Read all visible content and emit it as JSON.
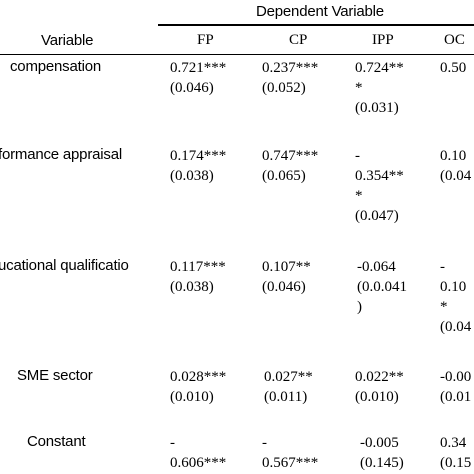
{
  "header": {
    "dependent_variable": "Dependent Variable",
    "variable": "Variable",
    "columns": [
      "FP",
      "CP",
      "IPP",
      "OC"
    ]
  },
  "rows": [
    {
      "label": "compensation",
      "cells": [
        [
          "0.721***",
          "(0.046)"
        ],
        [
          "0.237***",
          "(0.052)"
        ],
        [
          "0.724**",
          "*",
          "(0.031)"
        ],
        [
          "0.50"
        ]
      ]
    },
    {
      "label": "formance appraisal",
      "cells": [
        [
          "0.174***",
          "(0.038)"
        ],
        [
          "0.747***",
          "(0.065)"
        ],
        [
          "-",
          "0.354**",
          "*",
          "(0.047)"
        ],
        [
          "0.10",
          "(0.04"
        ]
      ]
    },
    {
      "label": "ucational qualificatio",
      "cells": [
        [
          "0.117***",
          "(0.038)"
        ],
        [
          "0.107**",
          "(0.046)"
        ],
        [
          "-0.064",
          "(0.0.041",
          ")"
        ],
        [
          "-",
          "0.10",
          "*",
          "(0.04"
        ]
      ]
    },
    {
      "label": "SME sector",
      "cells": [
        [
          "0.028***",
          "(0.010)"
        ],
        [
          "0.027**",
          "(0.011)"
        ],
        [
          "0.022**",
          "(0.010)"
        ],
        [
          "-0.00",
          "(0.01"
        ]
      ]
    },
    {
      "label": "Constant",
      "cells": [
        [
          "-",
          "0.606***"
        ],
        [
          "-",
          "0.567***"
        ],
        [
          "-0.005",
          "(0.145)"
        ],
        [
          "0.34",
          "(0.15"
        ]
      ]
    }
  ]
}
